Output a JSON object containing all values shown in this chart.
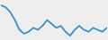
{
  "values": [
    95,
    93,
    88,
    80,
    70,
    66,
    68,
    72,
    70,
    74,
    80,
    76,
    72,
    74,
    68,
    64,
    70,
    74,
    70,
    68,
    72,
    70,
    68,
    72
  ],
  "line_color": "#3a8fc8",
  "linewidth": 1.3,
  "background_color": "#eeeeee",
  "ylim": [
    60,
    100
  ]
}
